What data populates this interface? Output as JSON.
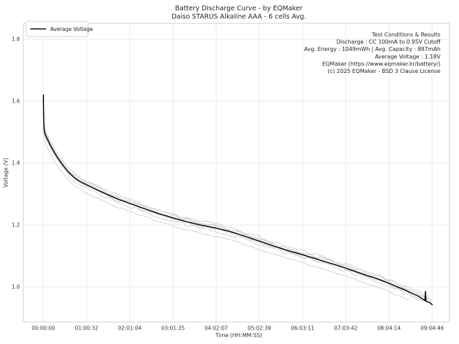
{
  "chart_data": {
    "type": "line",
    "title": "Battery Discharge Curve - by EQMaker",
    "subtitle": "Daiso STARUS Alkaline AAA - 6 cells Avg.",
    "xlabel": "Time (HH:MM:SS)",
    "ylabel": "Voltage (V)",
    "grid": true,
    "legend": {
      "position": "upper-left",
      "entries": [
        {
          "label": "Average Voltage",
          "color": "#0a0a0a"
        }
      ]
    },
    "x_ticks": {
      "seconds": [
        0,
        3632,
        7264,
        10896,
        14527,
        18159,
        21791,
        25422,
        29054,
        32686
      ],
      "labels": [
        "00:00:00",
        "01:00:32",
        "02:01:04",
        "03:01:35",
        "04:02:07",
        "05:02:39",
        "06:03:11",
        "07:03:42",
        "08:04:14",
        "09:04:46"
      ]
    },
    "y_ticks": {
      "values": [
        1.0,
        1.2,
        1.4,
        1.6,
        1.8
      ],
      "labels": [
        "1.0",
        "1.2",
        "1.4",
        "1.6",
        "1.8"
      ]
    },
    "xlim_seconds": [
      -1680,
      34130
    ],
    "ylim_volts": [
      0.887,
      1.851
    ],
    "annotation": {
      "align": "right",
      "lines": [
        "Test Conditions & Results",
        "Discharge : CC 100mA to 0.95V Cutoff",
        "Avg. Energy : 1049mWh | Avg. Capacity : 887mAh",
        "Average Voltage : 1.18V",
        "EQMaker (https://www.eqmaker.kr/battery/)",
        "(c) 2025 EQMaker - BSD 3 Clause License"
      ]
    },
    "series": [
      {
        "name": "Average Voltage",
        "color": "#0a0a0a",
        "width": 1.6,
        "points": [
          [
            0,
            1.62
          ],
          [
            15,
            1.575
          ],
          [
            35,
            1.535
          ],
          [
            60,
            1.51
          ],
          [
            120,
            1.496
          ],
          [
            300,
            1.48
          ],
          [
            600,
            1.456
          ],
          [
            900,
            1.436
          ],
          [
            1200,
            1.417
          ],
          [
            1600,
            1.395
          ],
          [
            2100,
            1.371
          ],
          [
            2600,
            1.353
          ],
          [
            3100,
            1.34
          ],
          [
            3632,
            1.33
          ],
          [
            4500,
            1.314
          ],
          [
            5400,
            1.298
          ],
          [
            6300,
            1.283
          ],
          [
            7264,
            1.27
          ],
          [
            8400,
            1.254
          ],
          [
            9600,
            1.238
          ],
          [
            10896,
            1.223
          ],
          [
            12000,
            1.211
          ],
          [
            13200,
            1.2
          ],
          [
            14527,
            1.19
          ],
          [
            15700,
            1.179
          ],
          [
            16900,
            1.164
          ],
          [
            18159,
            1.148
          ],
          [
            19300,
            1.133
          ],
          [
            20500,
            1.118
          ],
          [
            21791,
            1.104
          ],
          [
            22900,
            1.091
          ],
          [
            24000,
            1.078
          ],
          [
            25422,
            1.061
          ],
          [
            26300,
            1.049
          ],
          [
            27200,
            1.037
          ],
          [
            28100,
            1.026
          ],
          [
            29054,
            1.012
          ],
          [
            29700,
            1.001
          ],
          [
            30300,
            0.992
          ],
          [
            30900,
            0.981
          ],
          [
            31500,
            0.971
          ],
          [
            31900,
            0.961
          ],
          [
            32080,
            0.956
          ],
          [
            32120,
            0.986
          ],
          [
            32160,
            0.954
          ],
          [
            32450,
            0.95
          ],
          [
            32686,
            0.943
          ]
        ]
      }
    ],
    "cell_series": {
      "description": "6 individual cell traces drawn as light gray offsets around the average",
      "color": "#cdcdcd",
      "width": 0.9,
      "cells": [
        {
          "offset_v": 0.013,
          "noise_v": 0.004,
          "end_s": 32686,
          "seed": 11
        },
        {
          "offset_v": 0.009,
          "noise_v": 0.005,
          "end_s": 32300,
          "seed": 22
        },
        {
          "offset_v": 0.005,
          "noise_v": 0.0045,
          "end_s": 32686,
          "seed": 33
        },
        {
          "offset_v": -0.004,
          "noise_v": 0.004,
          "end_s": 32000,
          "seed": 44
        },
        {
          "offset_v": -0.009,
          "noise_v": 0.0055,
          "end_s": 31600,
          "seed": 55
        },
        {
          "offset_v": -0.026,
          "noise_v": 0.002,
          "end_s": 30700,
          "seed": 66
        }
      ]
    },
    "colors": {
      "background": "#ffffff",
      "grid": "#e9e9e9",
      "spine": "#cfcfcf",
      "text": "#262626",
      "average_line": "#0a0a0a",
      "cell_line": "#cdcdcd"
    }
  }
}
